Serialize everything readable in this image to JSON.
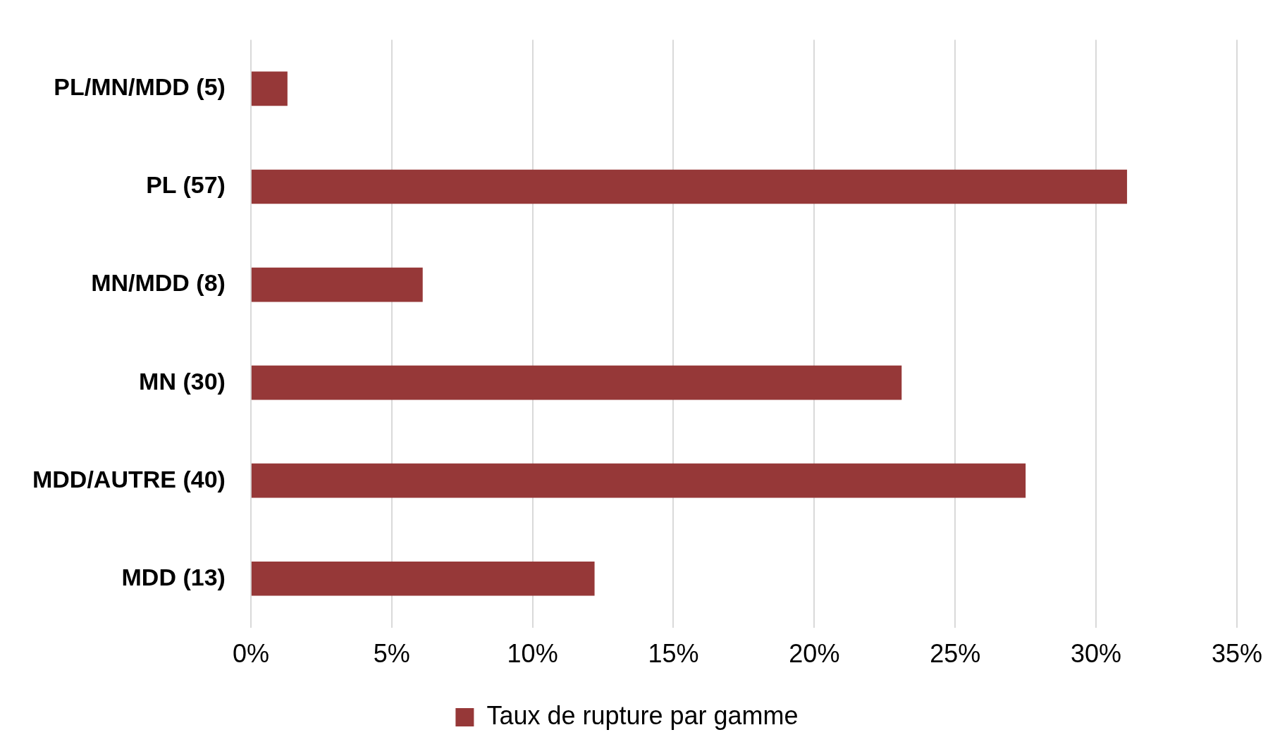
{
  "chart_data": {
    "type": "bar",
    "orientation": "horizontal",
    "categories": [
      "PL/MN/MDD (5)",
      "PL (57)",
      "MN/MDD (8)",
      "MN (30)",
      "MDD/AUTRE (40)",
      "MDD (13)"
    ],
    "series": [
      {
        "name": "Taux de rupture par gamme",
        "color": "#963838",
        "values": [
          1.3,
          31.1,
          6.1,
          23.1,
          27.5,
          12.2
        ]
      }
    ],
    "xlim": [
      0,
      35
    ],
    "xticks": [
      {
        "value": 0,
        "label": "0%"
      },
      {
        "value": 5,
        "label": "5%"
      },
      {
        "value": 10,
        "label": "10%"
      },
      {
        "value": 15,
        "label": "15%"
      },
      {
        "value": 20,
        "label": "20%"
      },
      {
        "value": 25,
        "label": "25%"
      },
      {
        "value": 30,
        "label": "30%"
      },
      {
        "value": 35,
        "label": "35%"
      }
    ],
    "grid": "x",
    "legend": "bottom"
  }
}
